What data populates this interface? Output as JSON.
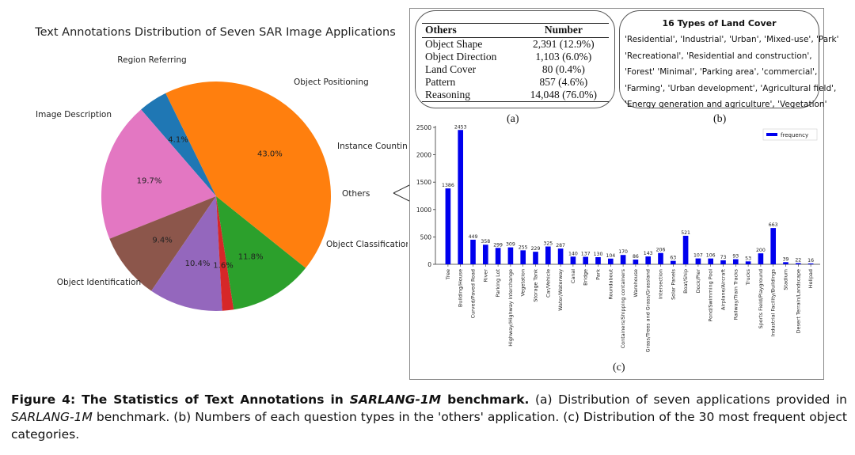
{
  "chart_data": [
    {
      "type": "pie",
      "title": "Text Annotations Distribution of Seven SAR Image Applications",
      "categories": [
        "Image Description",
        "Region Referring",
        "Object Positioning",
        "Instance Counting",
        "Others",
        "Object Classification",
        "Object Identification"
      ],
      "values": [
        4.1,
        19.7,
        9.4,
        10.4,
        1.6,
        11.8,
        43.0
      ],
      "value_labels": [
        "4.1%",
        "19.7%",
        "9.4%",
        "10.4%",
        "1.6%",
        "11.8%",
        "43.0%"
      ],
      "colors": [
        "#1f77b4",
        "#e377c2",
        "#8c564b",
        "#9467bd",
        "#d62728",
        "#2ca02c",
        "#ff7f0e"
      ]
    },
    {
      "type": "table",
      "columns": [
        "Others",
        "Number"
      ],
      "rows": [
        [
          "Object Shape",
          "2,391 (12.9%)"
        ],
        [
          "Object Direction",
          "1,103 (6.0%)"
        ],
        [
          "Land Cover",
          "80 (0.4%)"
        ],
        [
          "Pattern",
          "857 (4.6%)"
        ],
        [
          "Reasoning",
          "14,048 (76.0%)"
        ]
      ]
    },
    {
      "type": "bar",
      "categories": [
        "Tree",
        "Building/House",
        "Curved/Paved Road",
        "River",
        "Parking Lot",
        "Highway/Highway Interchange",
        "Vegetation",
        "Storage Tank",
        "Car/Vehicle",
        "Water/Waterway",
        "Canal",
        "Bridge",
        "Park",
        "Roundabout",
        "Containers/Shipping containers",
        "Warehouse",
        "Grass/Trees and Grass/Grassland",
        "Intersection",
        "Solar Panels",
        "Boat/Ship",
        "Dock/Pier",
        "Pond/Swimming Pool",
        "Airplane/Aircraft",
        "Railway/Train Tracks",
        "Trucks",
        "Sports Field/Playground",
        "Industrial Facility/Buildings",
        "Stadium",
        "Desert Terrain/Landscape",
        "Helipad"
      ],
      "values": [
        1386,
        2453,
        449,
        358,
        299,
        309,
        255,
        229,
        325,
        287,
        140,
        137,
        130,
        104,
        170,
        86,
        143,
        206,
        63,
        521,
        107,
        106,
        73,
        93,
        53,
        200,
        663,
        39,
        22,
        16
      ],
      "legend": "frequency",
      "legend_position": "top-right",
      "ylim": [
        0,
        2500
      ],
      "yticks": [
        0,
        500,
        1000,
        1500,
        2000,
        2500
      ],
      "color": "#0000ee"
    }
  ],
  "landcover": {
    "title": "16 Types of Land Cover",
    "lines": [
      "'Residential', 'Industrial', 'Urban', 'Mixed-use', 'Park'",
      "'Recreational', 'Residential and construction',",
      "'Forest' 'Minimal', 'Parking area',  'commercial',",
      "'Farming', 'Urban development', 'Agricultural field',",
      "'Energy generation and agriculture', 'Vegetation'"
    ]
  },
  "panel_labels": {
    "a": "(a)",
    "b": "(b)",
    "c": "(c)"
  },
  "caption": {
    "figure_label": "Figure 4: The Statistics of Text Annotations in ",
    "dataset_bold": "SARLANG-1M",
    "after_bold": " benchmark.",
    "part1": " (a) Distribution of seven applications provided in ",
    "dataset_ital1": "SARLANG-1M",
    "part2": " benchmark. (b) Numbers of each question types in the 'others' application. (c) Distribution of the 30 most frequent object categories."
  }
}
